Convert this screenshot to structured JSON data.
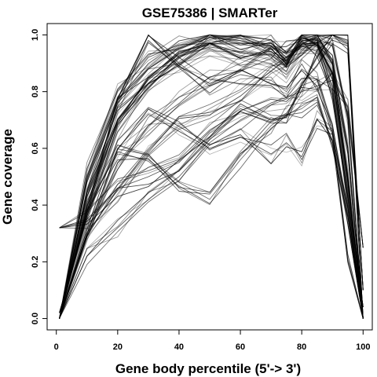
{
  "chart_data": {
    "type": "line",
    "title": "GSE75386 | SMARTer",
    "xlabel": "Gene body percentile (5'-> 3')",
    "ylabel": "Gene coverage",
    "xlim": [
      -3,
      103
    ],
    "ylim": [
      -0.04,
      1.04
    ],
    "x_ticks": [
      0,
      20,
      40,
      60,
      80,
      100
    ],
    "y_ticks": [
      0.0,
      0.2,
      0.4,
      0.6,
      0.8,
      1.0
    ],
    "x_tick_labels": [
      "0",
      "20",
      "40",
      "60",
      "80",
      "100"
    ],
    "y_tick_labels": [
      "0.0",
      "0.2",
      "0.4",
      "0.6",
      "0.8",
      "1.0"
    ],
    "grid": false,
    "legend": "none",
    "line_color": "#000000",
    "n_curves": 80,
    "x": [
      1,
      10,
      20,
      30,
      40,
      50,
      60,
      70,
      75,
      80,
      85,
      90,
      95,
      100
    ],
    "series": [
      {
        "values": [
          0.0,
          0.42,
          0.72,
          0.85,
          0.92,
          0.96,
          0.95,
          0.93,
          0.89,
          0.96,
          0.95,
          0.8,
          0.42,
          0.0
        ]
      },
      {
        "values": [
          0.0,
          0.48,
          0.76,
          0.88,
          0.95,
          0.99,
          0.98,
          0.95,
          0.9,
          0.99,
          0.98,
          0.86,
          0.5,
          0.0
        ]
      },
      {
        "values": [
          0.0,
          0.52,
          0.8,
          0.91,
          0.97,
          1.0,
          0.98,
          0.96,
          0.91,
          1.0,
          0.99,
          0.88,
          0.52,
          0.0
        ]
      },
      {
        "values": [
          0.02,
          0.36,
          0.66,
          0.82,
          0.9,
          0.95,
          0.92,
          0.9,
          0.86,
          0.95,
          0.96,
          0.84,
          0.46,
          0.04
        ]
      },
      {
        "values": [
          0.0,
          0.4,
          0.69,
          0.83,
          0.92,
          0.97,
          0.97,
          0.97,
          0.92,
          0.97,
          0.97,
          0.9,
          0.6,
          0.0
        ]
      },
      {
        "values": [
          0.0,
          0.3,
          0.55,
          0.68,
          0.78,
          0.85,
          0.9,
          0.95,
          0.96,
          0.98,
          0.99,
          0.96,
          0.7,
          0.0
        ]
      },
      {
        "values": [
          0.0,
          0.28,
          0.44,
          0.58,
          0.68,
          0.74,
          0.8,
          0.87,
          0.92,
          0.96,
          0.98,
          1.0,
          0.98,
          0.0
        ]
      },
      {
        "values": [
          0.32,
          0.35,
          0.46,
          0.5,
          0.55,
          0.66,
          0.74,
          0.7,
          0.71,
          0.82,
          0.92,
          1.0,
          0.97,
          0.1
        ]
      },
      {
        "values": [
          0.0,
          0.3,
          0.6,
          0.72,
          0.66,
          0.6,
          0.64,
          0.58,
          0.62,
          0.57,
          0.7,
          0.66,
          0.2,
          0.0
        ]
      },
      {
        "values": [
          0.0,
          0.4,
          0.58,
          0.56,
          0.48,
          0.42,
          0.56,
          0.68,
          0.72,
          0.74,
          0.78,
          0.6,
          0.36,
          0.0
        ]
      },
      {
        "values": [
          0.0,
          0.22,
          0.32,
          0.42,
          0.5,
          0.62,
          0.7,
          0.76,
          0.78,
          0.8,
          0.82,
          0.84,
          0.75,
          0.25
        ]
      },
      {
        "values": [
          0.0,
          0.38,
          0.75,
          1.0,
          0.9,
          0.82,
          0.86,
          0.84,
          0.8,
          0.88,
          0.84,
          0.66,
          0.36,
          0.0
        ]
      }
    ]
  }
}
